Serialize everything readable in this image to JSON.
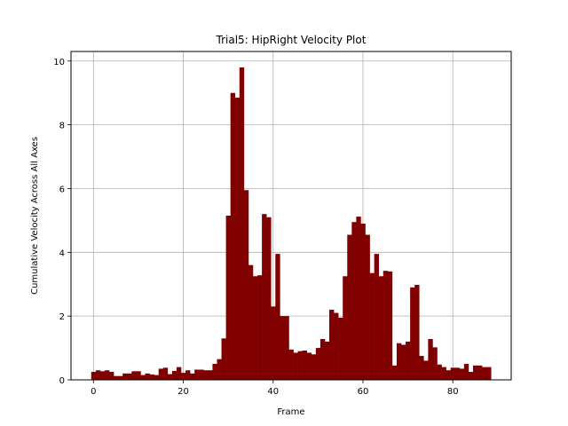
{
  "chart_data": {
    "type": "bar",
    "title": "Trial5: HipRight Velocity Plot",
    "xlabel": "Frame",
    "ylabel": "Cumulative Velocity Across All Axes",
    "xlim": [
      -5,
      93
    ],
    "ylim": [
      0,
      10.3
    ],
    "xticks": [
      0,
      20,
      40,
      60,
      80
    ],
    "yticks": [
      0,
      2,
      4,
      6,
      8,
      10
    ],
    "grid": true,
    "bar_color": "#800000",
    "x": [
      0,
      1,
      2,
      3,
      4,
      5,
      6,
      7,
      8,
      9,
      10,
      11,
      12,
      13,
      14,
      15,
      16,
      17,
      18,
      19,
      20,
      21,
      22,
      23,
      24,
      25,
      26,
      27,
      28,
      29,
      30,
      31,
      32,
      33,
      34,
      35,
      36,
      37,
      38,
      39,
      40,
      41,
      42,
      43,
      44,
      45,
      46,
      47,
      48,
      49,
      50,
      51,
      52,
      53,
      54,
      55,
      56,
      57,
      58,
      59,
      60,
      61,
      62,
      63,
      64,
      65,
      66,
      67,
      68,
      69,
      70,
      71,
      72,
      73,
      74,
      75,
      76,
      77,
      78,
      79,
      80,
      81,
      82,
      83,
      84,
      85,
      86,
      87,
      88
    ],
    "values": [
      0.25,
      0.3,
      0.27,
      0.3,
      0.25,
      0.12,
      0.12,
      0.2,
      0.2,
      0.27,
      0.27,
      0.15,
      0.2,
      0.17,
      0.15,
      0.35,
      0.38,
      0.18,
      0.28,
      0.4,
      0.22,
      0.3,
      0.2,
      0.32,
      0.32,
      0.3,
      0.3,
      0.5,
      0.65,
      1.3,
      5.15,
      9.0,
      8.85,
      9.8,
      5.95,
      3.6,
      3.25,
      3.28,
      5.2,
      5.1,
      2.3,
      3.95,
      2.0,
      2.0,
      0.95,
      0.85,
      0.9,
      0.92,
      0.85,
      0.8,
      1.0,
      1.28,
      1.2,
      2.2,
      2.1,
      1.95,
      3.25,
      4.55,
      4.95,
      5.12,
      4.9,
      4.55,
      3.35,
      3.95,
      3.25,
      3.42,
      3.4,
      0.45,
      1.15,
      1.1,
      1.2,
      2.9,
      2.98,
      0.75,
      0.6,
      1.28,
      1.02,
      0.48,
      0.4,
      0.3,
      0.38,
      0.38,
      0.35,
      0.5,
      0.25,
      0.45,
      0.45,
      0.4,
      0.4
    ]
  }
}
